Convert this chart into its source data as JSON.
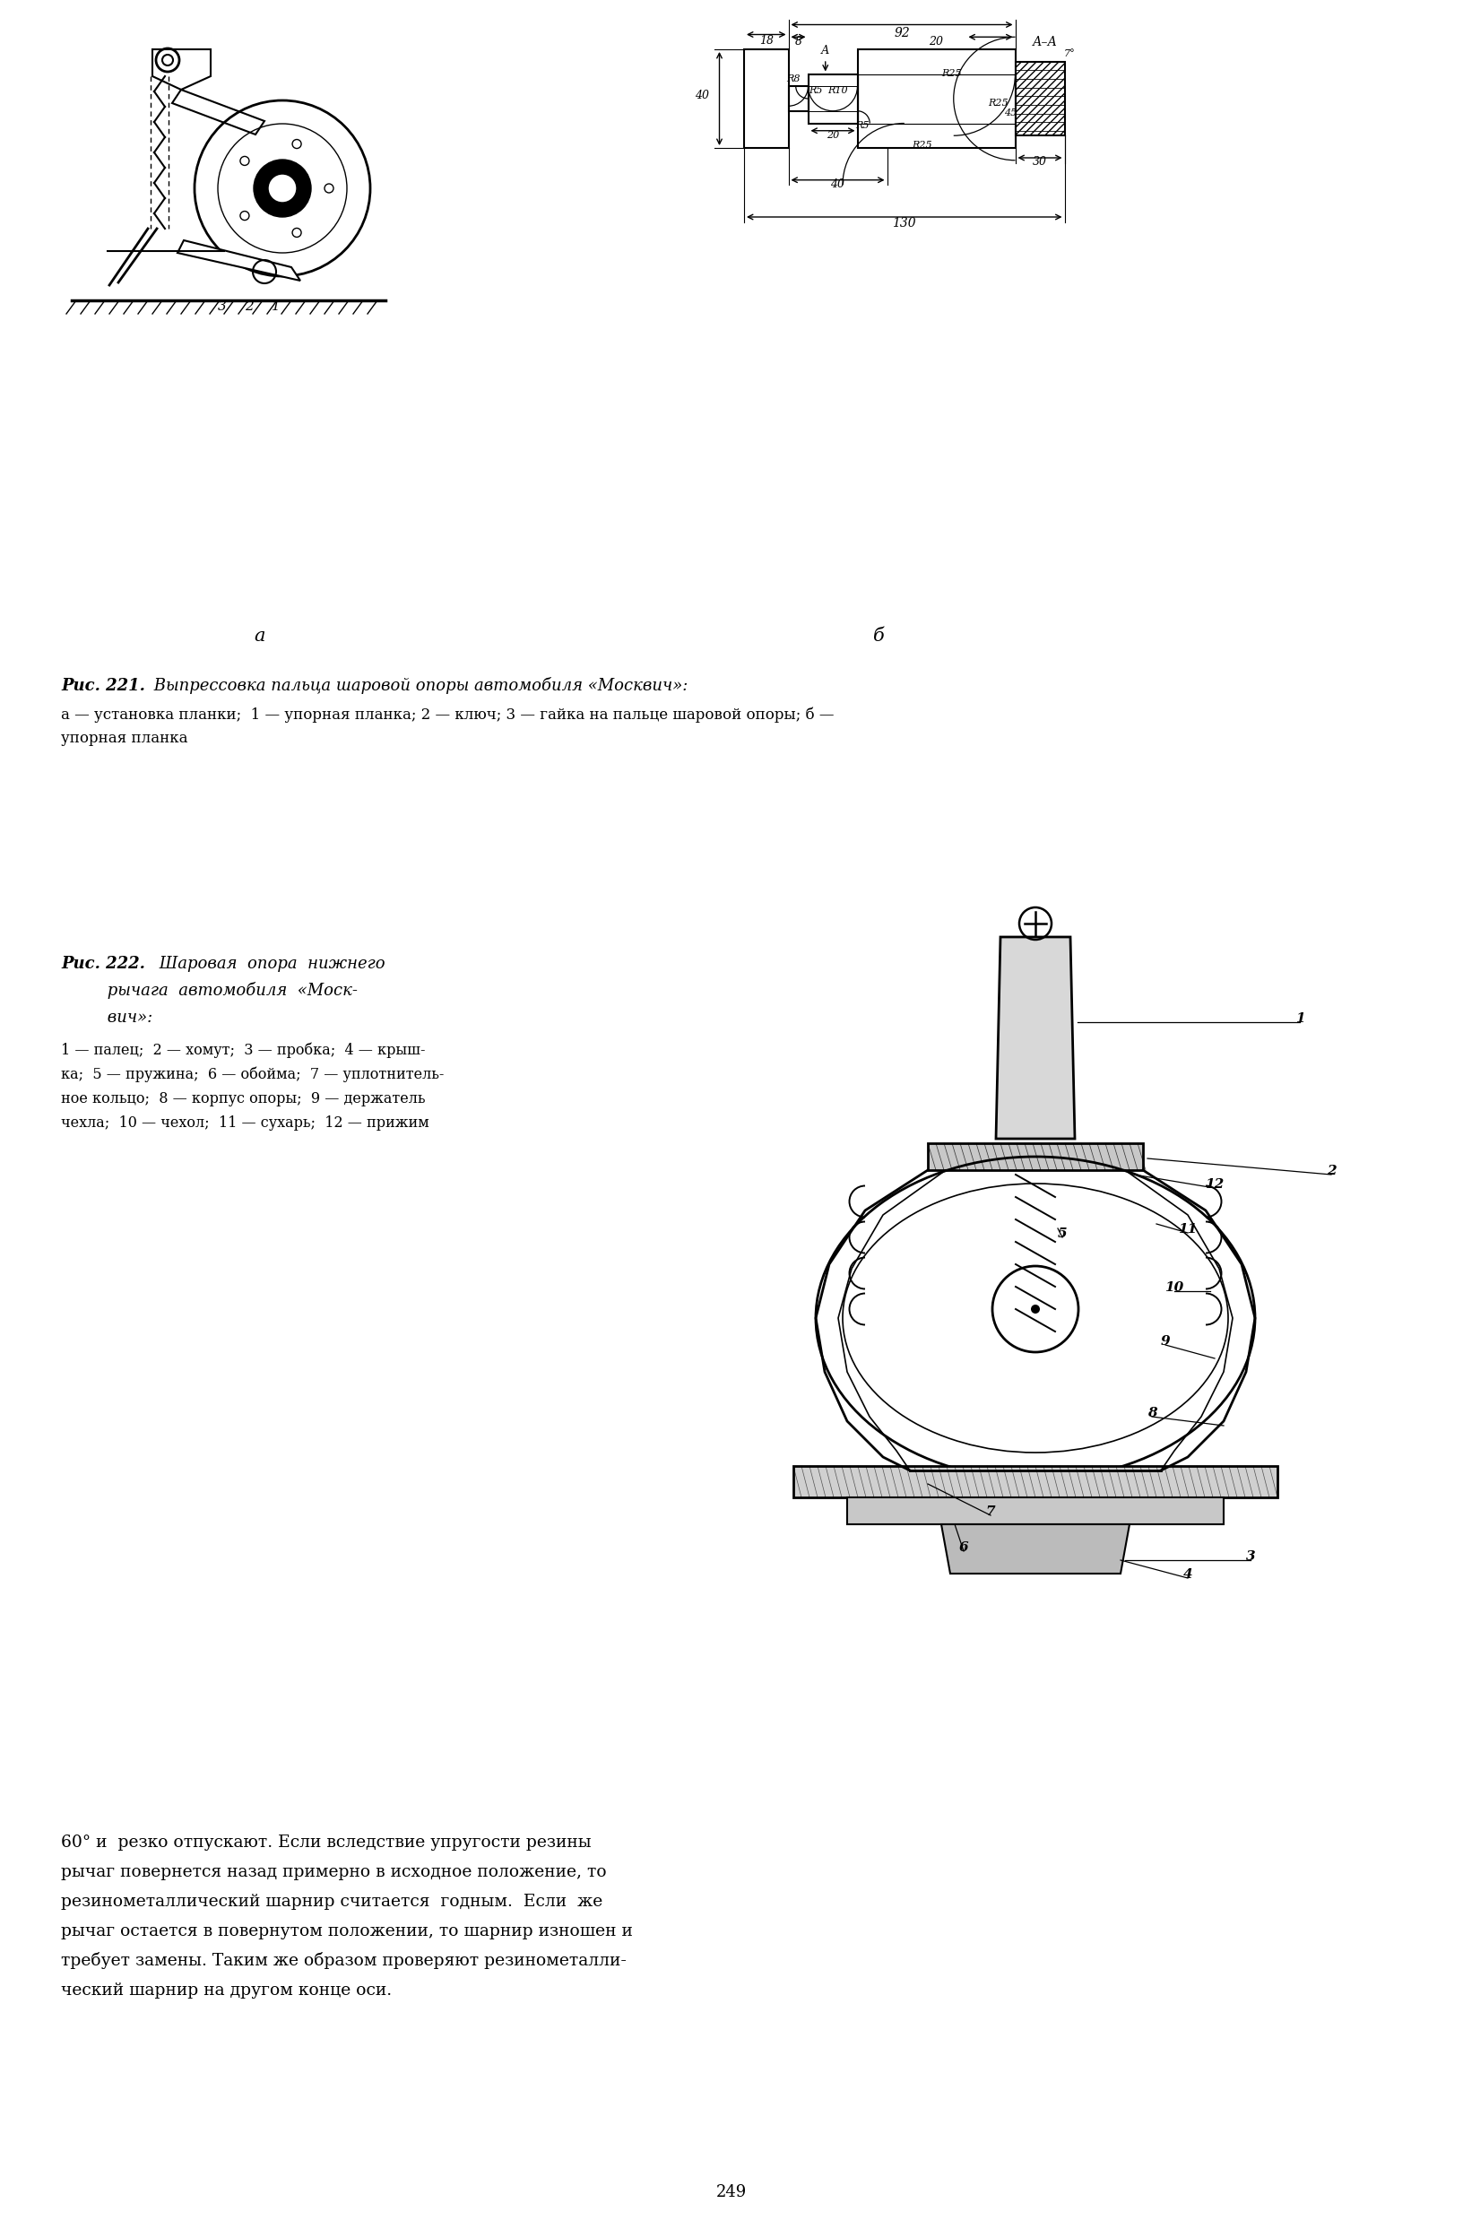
{
  "page_width": 16.32,
  "page_height": 24.96,
  "background_color": "#ffffff",
  "text_color": "#000000",
  "fig221_caption_bold": "Рис. 221.",
  "fig221_caption_text": " Выпрессовка пальца шаровой опоры автомобиля «Москвич»:",
  "fig221_caption2": "а — установка планки;  1 — упорная планка; 2 — ключ; 3 — гайка на пальце шаровой опоры; б —",
  "fig221_caption3": "упорная планка",
  "fig221_sub_a": "а",
  "fig221_sub_b": "б",
  "fig222_caption_bold": "Рис. 222.",
  "fig222_caption_text": " Шаровая  опора  нижнего",
  "fig222_caption_text2": "         рычага  автомобиля  «Моск-",
  "fig222_caption_text3": "         вич»:",
  "fig222_legend_lines": [
    "1 — палец;  2 — хомут;  3 — пробка;  4 — крыш-",
    "ка;  5 — пружина;  6 — обойма;  7 — уплотнитель-",
    "ное кольцо;  8 — корпус опоры;  9 — держатель",
    "чехла;  10 — чехол;  11 — сухарь;  12 — прижим"
  ],
  "footer_lines": [
    "60° и  резко отпускают. Если вследствие упругости резины",
    "рычаг повернется назад примерно в исходное положение, то",
    "резинометаллический шарнир считается  годным.  Если  же",
    "рычаг остается в повернутом положении, то шарнир изношен и",
    "требует замены. Таким же образом проверяют резинометалли-",
    "ческий шарнир на другом конце оси."
  ],
  "page_number": "249"
}
